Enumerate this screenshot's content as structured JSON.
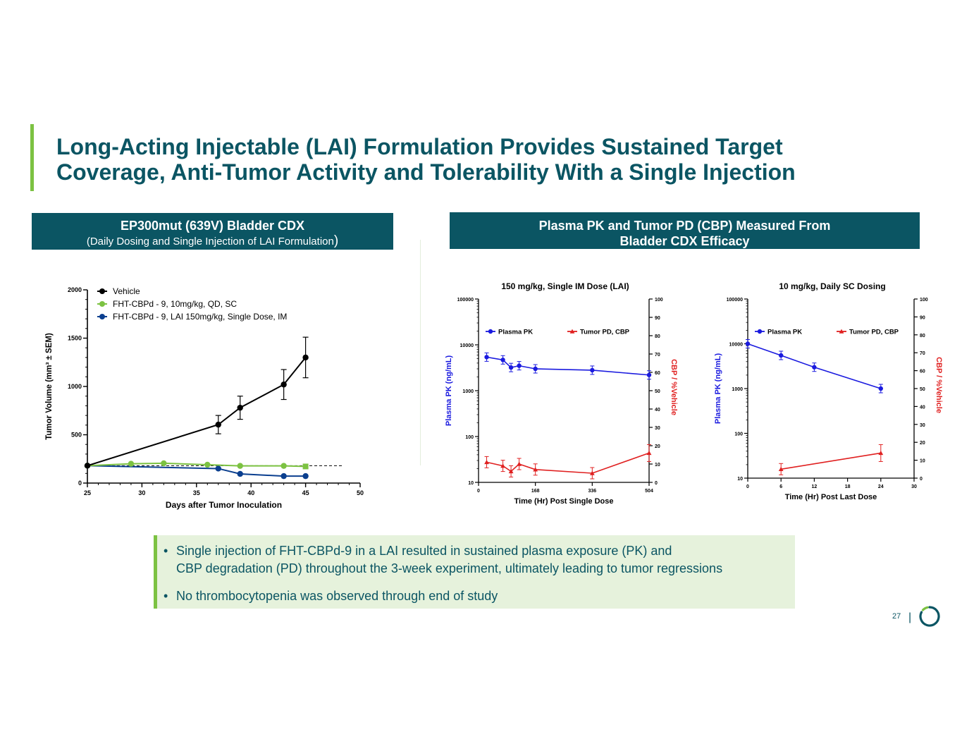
{
  "slide": {
    "title_line1": "Long-Acting Injectable (LAI) Formulation Provides Sustained Target",
    "title_line2": "Coverage, Anti-Tumor Activity and Tolerability With a Single Injection",
    "page_number": "27",
    "page_separator": "|"
  },
  "left_header": {
    "line1": "EP300mut (639V) Bladder CDX",
    "line2_open": "(",
    "line2_text": "Daily Dosing and Single Injection of LAI Formulation",
    "line2_close": ")"
  },
  "right_header": {
    "line1": "Plasma PK and Tumor PD (CBP) Measured From",
    "line2": "Bladder CDX Efficacy"
  },
  "callout": {
    "bullet": "•",
    "b1_line1": "Single injection of FHT-CBPd-9 in a LAI resulted in sustained plasma exposure (PK) and",
    "b1_line2": "CBP degradation (PD) throughout the 3-week experiment, ultimately leading to tumor regressions",
    "b2": "No thrombocytopenia was observed through end of study"
  },
  "colors": {
    "teal": "#0b5563",
    "green": "#7cc242",
    "callout_bg": "#e6f2dc",
    "blue": "#1a1adf",
    "red": "#e02020"
  },
  "chart_data": [
    {
      "type": "line",
      "title": "",
      "xlabel": "Days after Tumor Inoculation",
      "ylabel": "Tumor Volume (mm³ ± SEM)",
      "xlim": [
        25,
        50
      ],
      "ylim": [
        0,
        2000
      ],
      "x_ticks": [
        25,
        30,
        35,
        40,
        45,
        50
      ],
      "y_ticks": [
        0,
        500,
        1000,
        1500,
        2000
      ],
      "reference_line_y": 180,
      "series": [
        {
          "name": "Vehicle",
          "color": "#000000",
          "x": [
            25,
            37,
            39,
            43,
            45
          ],
          "y": [
            180,
            605,
            780,
            1020,
            1300
          ],
          "err": [
            0,
            95,
            120,
            155,
            210
          ]
        },
        {
          "name": "FHT-CBPd - 9, 10mg/kg, QD, SC",
          "color": "#7cc242",
          "x": [
            25,
            29,
            32,
            36,
            39,
            43,
            45
          ],
          "y": [
            180,
            200,
            205,
            190,
            178,
            178,
            172
          ],
          "err": [
            0,
            0,
            0,
            0,
            0,
            0,
            0
          ]
        },
        {
          "name": "FHT-CBPd - 9, LAI 150mg/kg, Single Dose, IM",
          "color": "#0b3f8f",
          "x": [
            25,
            37,
            39,
            43,
            45
          ],
          "y": [
            180,
            150,
            95,
            72,
            72
          ],
          "err": [
            0,
            0,
            0,
            0,
            0
          ]
        }
      ]
    },
    {
      "type": "line",
      "title": "150 mg/kg, Single IM Dose (LAI)",
      "xlabel": "Time (Hr) Post Single Dose",
      "ylabel": "Plasma PK  (ng/mL)",
      "y2label": "CBP / %Vehicle",
      "xlim": [
        0,
        504
      ],
      "x_ticks": [
        0,
        168,
        336,
        504
      ],
      "y_log_ticks": [
        10,
        100,
        1000,
        10000,
        100000
      ],
      "y_log_tick_labels": [
        "10",
        "100",
        "1000",
        "10000",
        "100000"
      ],
      "y2lim": [
        0,
        100
      ],
      "y2_ticks": [
        0,
        10,
        20,
        30,
        40,
        50,
        60,
        70,
        80,
        90,
        100
      ],
      "series": [
        {
          "name": "Plasma PK",
          "axis": "left",
          "marker": "circle",
          "color": "#1a1adf",
          "x": [
            24,
            72,
            96,
            120,
            168,
            336,
            504
          ],
          "y": [
            5400,
            4700,
            3200,
            3500,
            3000,
            2800,
            2200
          ]
        },
        {
          "name": "Tumor PD, CBP",
          "axis": "right",
          "marker": "triangle",
          "color": "#e02020",
          "x": [
            24,
            72,
            96,
            120,
            168,
            336,
            504
          ],
          "y": [
            11,
            9,
            6,
            10,
            7,
            5,
            16
          ]
        }
      ]
    },
    {
      "type": "line",
      "title": "10 mg/kg, Daily SC Dosing",
      "xlabel": "Time (Hr) Post Last Dose",
      "ylabel": "Plasma PK  (ng/mL)",
      "y2label": "CBP / %Vehicle",
      "xlim": [
        0,
        30
      ],
      "x_ticks": [
        0,
        6,
        12,
        18,
        24,
        30
      ],
      "y_log_ticks": [
        10,
        100,
        1000,
        10000,
        100000
      ],
      "y_log_tick_labels": [
        "10",
        "100",
        "1000",
        "10000",
        "100000"
      ],
      "y2lim": [
        0,
        100
      ],
      "y2_ticks": [
        0,
        10,
        20,
        30,
        40,
        50,
        60,
        70,
        80,
        90,
        100
      ],
      "series": [
        {
          "name": "Plasma PK",
          "axis": "left",
          "marker": "circle",
          "color": "#1a1adf",
          "x": [
            0,
            6,
            12,
            24
          ],
          "y": [
            10000,
            5500,
            3000,
            1000
          ]
        },
        {
          "name": "Tumor PD, CBP",
          "axis": "right",
          "marker": "triangle",
          "color": "#e02020",
          "x": [
            6,
            24
          ],
          "y": [
            5,
            14
          ]
        }
      ]
    }
  ]
}
